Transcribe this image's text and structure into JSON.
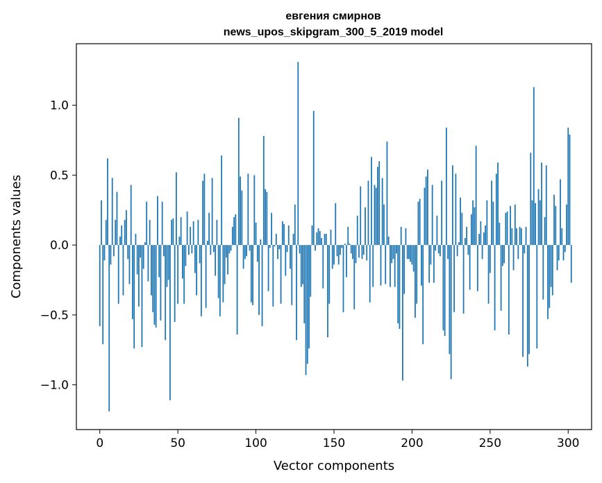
{
  "chart_data": {
    "type": "bar",
    "title": "евгения смирнов",
    "subtitle": "news_upos_skipgram_300_5_2019 model",
    "xlabel": "Vector components",
    "ylabel": "Components values",
    "xlim": [
      -15,
      315
    ],
    "ylim": [
      -1.32,
      1.44
    ],
    "xticks": [
      0,
      50,
      100,
      150,
      200,
      250,
      300
    ],
    "yticks": [
      -1.0,
      -0.5,
      0.0,
      0.5,
      1.0
    ],
    "ytick_labels": [
      "−1.0",
      "−0.5",
      "0.0",
      "0.5",
      "1.0"
    ],
    "bar_color": "#1f77b4",
    "grid": false,
    "values": [
      -0.58,
      0.32,
      -0.71,
      -0.11,
      0.18,
      0.62,
      -1.19,
      -0.14,
      0.48,
      -0.08,
      0.18,
      0.38,
      -0.42,
      0.06,
      0.14,
      -0.36,
      0.18,
      0.25,
      -0.1,
      -0.28,
      0.43,
      -0.53,
      -0.74,
      0.08,
      -0.21,
      -0.44,
      -0.09,
      -0.73,
      -0.17,
      0.02,
      0.31,
      -0.26,
      0.18,
      -0.36,
      -0.48,
      -0.57,
      -0.59,
      0.35,
      -0.23,
      -0.54,
      0.31,
      -0.08,
      -0.68,
      -0.3,
      -0.25,
      -1.11,
      0.18,
      0.19,
      -0.55,
      0.52,
      -0.42,
      0.06,
      0.2,
      -0.24,
      -0.42,
      -0.15,
      0.24,
      -0.07,
      0.13,
      -0.06,
      0.17,
      -0.2,
      -0.36,
      0.18,
      -0.13,
      -0.51,
      0.46,
      0.51,
      -0.45,
      0.03,
      0.23,
      -0.07,
      0.48,
      -0.05,
      -0.22,
      0.18,
      -0.38,
      -0.51,
      0.64,
      -0.41,
      -0.28,
      -0.09,
      -0.21,
      -0.06,
      -0.04,
      0.13,
      0.2,
      0.22,
      -0.64,
      0.91,
      0.49,
      0.39,
      -0.17,
      -0.1,
      -0.08,
      0.51,
      -0.04,
      -0.41,
      -0.43,
      0.5,
      0.16,
      -0.12,
      -0.5,
      0.04,
      -0.58,
      0.78,
      0.4,
      0.38,
      -0.33,
      -0.02,
      0.23,
      -0.44,
      -0.01,
      0.08,
      -0.1,
      -0.03,
      -0.42,
      0.17,
      0.15,
      -0.22,
      -0.05,
      0.14,
      -0.17,
      -0.43,
      0.08,
      0.29,
      -0.68,
      1.31,
      -0.06,
      -0.3,
      -0.28,
      -0.56,
      -0.93,
      -0.85,
      -0.74,
      -0.37,
      0.14,
      0.96,
      -0.04,
      0.09,
      0.12,
      0.1,
      0.05,
      -0.31,
      0.08,
      0.08,
      -0.66,
      -0.42,
      0.11,
      -0.17,
      -0.14,
      0.3,
      -0.08,
      -0.14,
      -0.07,
      -0.02,
      -0.48,
      0.01,
      -0.23,
      0.13,
      0.01,
      -0.06,
      -0.1,
      -0.46,
      -0.13,
      0.21,
      -0.09,
      0.42,
      -0.1,
      -0.07,
      0.27,
      -0.11,
      0.46,
      -0.41,
      0.63,
      -0.3,
      0.43,
      0.41,
      0.56,
      0.6,
      -0.29,
      0.48,
      0.29,
      -0.28,
      0.74,
      0.06,
      -0.3,
      -0.13,
      -0.1,
      -0.3,
      -0.06,
      -0.56,
      -0.6,
      0.13,
      -0.97,
      -0.35,
      0.12,
      -0.1,
      -0.1,
      -0.12,
      -0.14,
      -0.19,
      -0.52,
      -0.42,
      0.31,
      0.33,
      -0.29,
      -0.71,
      0.41,
      0.49,
      0.54,
      -0.27,
      -0.14,
      0.43,
      -0.27,
      -0.04,
      0.21,
      -0.06,
      -0.08,
      0.46,
      -0.61,
      -0.65,
      0.84,
      -0.1,
      -0.78,
      -0.96,
      0.57,
      -0.48,
      0.51,
      -0.08,
      0.02,
      0.34,
      0.23,
      -0.49,
      0.05,
      0.13,
      -0.07,
      -0.32,
      0.22,
      0.32,
      0.27,
      0.71,
      -0.33,
      0.08,
      0.17,
      -0.1,
      0.09,
      0.14,
      0.32,
      -0.42,
      -0.2,
      0.46,
      0.31,
      -0.61,
      0.51,
      0.59,
      0.16,
      -0.47,
      -0.15,
      -0.13,
      0.23,
      0.24,
      -0.64,
      0.28,
      0.12,
      -0.18,
      0.29,
      0.12,
      -0.1,
      0.13,
      0.12,
      -0.8,
      -0.06,
      0.13,
      -0.87,
      -0.78,
      0.66,
      0.32,
      1.13,
      0.3,
      -0.74,
      0.4,
      0.32,
      0.59,
      -0.39,
      0.2,
      0.57,
      -0.53,
      -0.45,
      -0.3,
      -0.36,
      0.36,
      0.28,
      -0.18,
      -0.11,
      0.47,
      0.12,
      -0.11,
      -0.05,
      0.29,
      0.84,
      0.79,
      -0.27
    ]
  }
}
